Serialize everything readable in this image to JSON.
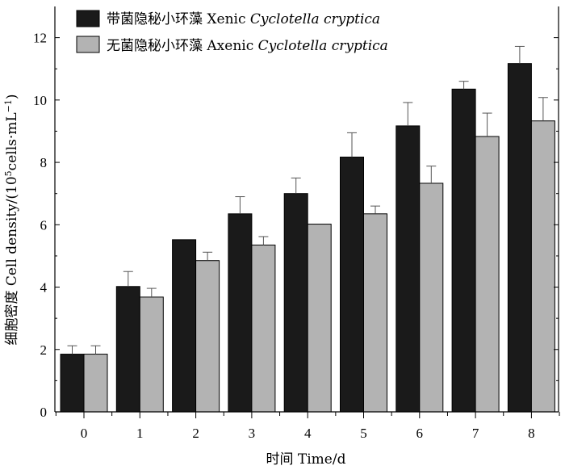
{
  "chart_data": {
    "type": "bar",
    "categories": [
      "0",
      "1",
      "2",
      "3",
      "4",
      "5",
      "6",
      "7",
      "8"
    ],
    "series": [
      {
        "name": "带菌隐秘小环藻 Xenic Cyclotella cryptica",
        "name_prefix": "带菌隐秘小环藻 Xenic ",
        "name_species": "Cyclotella cryptica",
        "color": "#1a1a1a",
        "values": [
          1.85,
          4.02,
          5.52,
          6.35,
          7.0,
          8.17,
          9.17,
          10.35,
          11.17
        ],
        "errors": [
          0.27,
          0.48,
          0.0,
          0.55,
          0.5,
          0.78,
          0.75,
          0.25,
          0.55
        ]
      },
      {
        "name": "无菌隐秘小环藻 Axenic Cyclotella cryptica",
        "name_prefix": "无菌隐秘小环藻 Axenic ",
        "name_species": "Cyclotella cryptica",
        "color": "#b3b3b3",
        "values": [
          1.85,
          3.68,
          4.85,
          5.35,
          6.02,
          6.35,
          7.33,
          8.83,
          9.33
        ],
        "errors": [
          0.27,
          0.28,
          0.27,
          0.27,
          0.0,
          0.25,
          0.55,
          0.75,
          0.75
        ]
      }
    ],
    "yticks": [
      "0",
      "2",
      "4",
      "6",
      "8",
      "10",
      "12"
    ],
    "ylim": [
      0,
      13
    ],
    "xlabel": "时间 Time/d",
    "ylabel_prefix": "细胞密度 Cell density/(10",
    "ylabel_sup1": "5",
    "ylabel_mid": "cells·mL",
    "ylabel_sup2": "−1",
    "ylabel_suffix": ")",
    "legend_position": "top-left",
    "grid": false
  }
}
